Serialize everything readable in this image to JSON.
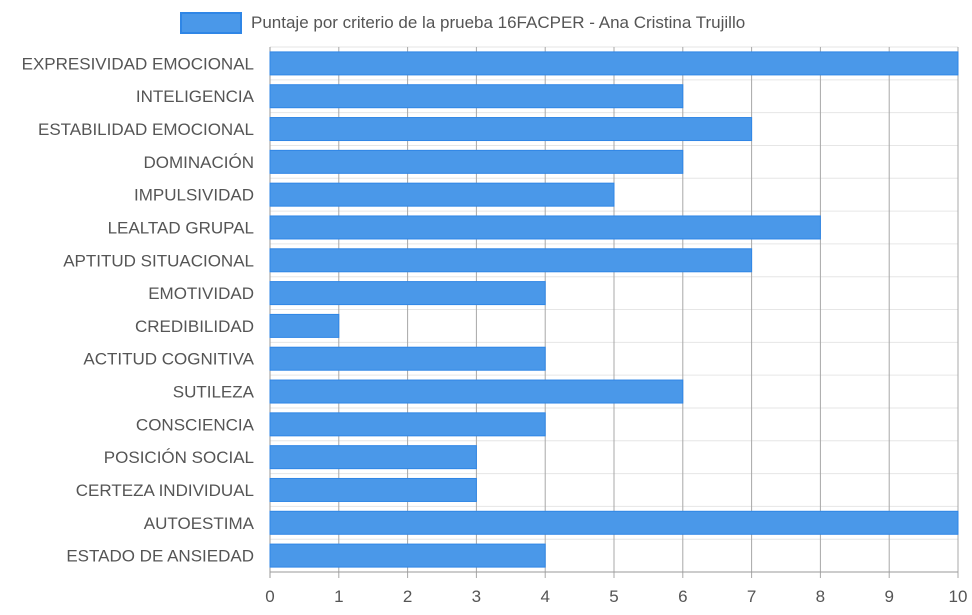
{
  "chart_data": {
    "type": "bar",
    "orientation": "horizontal",
    "categories": [
      "EXPRESIVIDAD EMOCIONAL",
      "INTELIGENCIA",
      "ESTABILIDAD EMOCIONAL",
      "DOMINACIÓN",
      "IMPULSIVIDAD",
      "LEALTAD GRUPAL",
      "APTITUD SITUACIONAL",
      "EMOTIVIDAD",
      "CREDIBILIDAD",
      "ACTITUD COGNITIVA",
      "SUTILEZA",
      "CONSCIENCIA",
      "POSICIÓN SOCIAL",
      "CERTEZA INDIVIDUAL",
      "AUTOESTIMA",
      "ESTADO DE ANSIEDAD"
    ],
    "series": [
      {
        "name": "Puntaje por criterio de la prueba 16FACPER - Ana Cristina Trujillo",
        "values": [
          10,
          6,
          7,
          6,
          5,
          8,
          7,
          4,
          1,
          4,
          6,
          4,
          3,
          3,
          10,
          4
        ],
        "color": "#4a98e9",
        "border_color": "#2f86e6"
      }
    ],
    "xlim": [
      0,
      10
    ],
    "x_ticks": [
      "0",
      "1",
      "2",
      "3",
      "4",
      "5",
      "6",
      "7",
      "8",
      "9",
      "10"
    ],
    "grid": true,
    "legend_position": "top"
  }
}
